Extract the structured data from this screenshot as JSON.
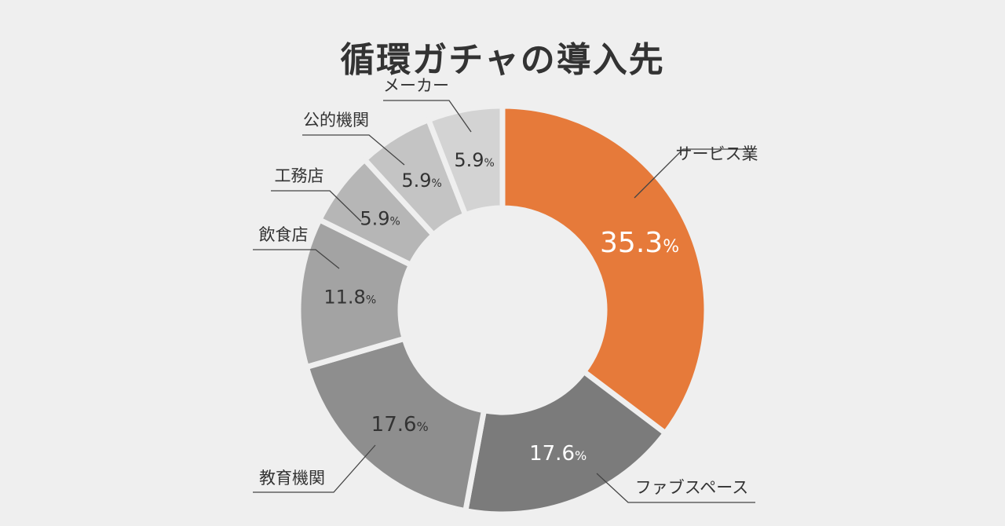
{
  "title": "循環ガチャの導入先",
  "chart_data": {
    "type": "pie",
    "title": "循環ガチャの導入先",
    "categories": [
      "サービス業",
      "ファブスペース",
      "教育機関",
      "飲食店",
      "工務店",
      "公的機関",
      "メーカー"
    ],
    "values": [
      35.3,
      17.6,
      17.6,
      11.8,
      5.9,
      5.9,
      5.9
    ],
    "value_labels": [
      "35.3",
      "17.6",
      "17.6",
      "11.8",
      "5.9",
      "5.9",
      "5.9"
    ],
    "unit": "%",
    "colors": [
      "#e67a3a",
      "#7b7b7b",
      "#8e8e8e",
      "#a3a3a3",
      "#b6b6b6",
      "#c4c4c4",
      "#d3d3d3"
    ],
    "label_colors": [
      "#ffffff",
      "#ffffff",
      "#333333",
      "#333333",
      "#333333",
      "#333333",
      "#333333"
    ]
  }
}
